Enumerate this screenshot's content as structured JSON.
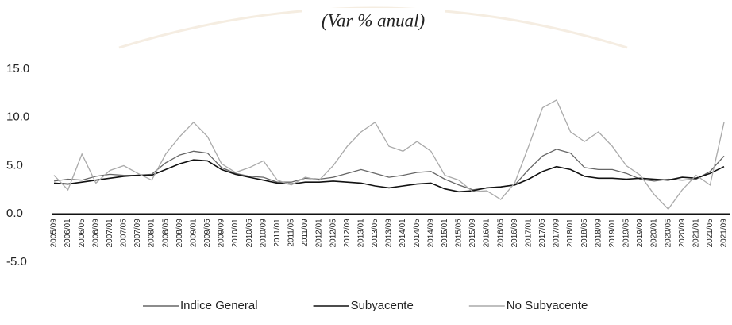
{
  "chart_data": {
    "type": "line",
    "title": "(Var % anual)",
    "categories": [
      "2005/09",
      "2006/01",
      "2006/05",
      "2006/09",
      "2007/01",
      "2007/05",
      "2007/09",
      "2008/01",
      "2008/05",
      "2008/09",
      "2009/01",
      "2009/05",
      "2009/09",
      "2010/01",
      "2010/05",
      "2010/09",
      "2011/01",
      "2011/05",
      "2011/09",
      "2012/01",
      "2012/05",
      "2012/09",
      "2013/01",
      "2013/05",
      "2013/09",
      "2014/01",
      "2014/05",
      "2014/09",
      "2015/01",
      "2015/05",
      "2015/09",
      "2016/01",
      "2016/05",
      "2016/09",
      "2017/01",
      "2017/05",
      "2017/09",
      "2018/01",
      "2018/05",
      "2018/09",
      "2019/01",
      "2019/05",
      "2019/09",
      "2020/01",
      "2020/05",
      "2020/09",
      "2021/01",
      "2021/05",
      "2021/09"
    ],
    "series": [
      {
        "name": "Indice General",
        "color": "#666666",
        "values": [
          3.4,
          3.6,
          3.5,
          3.9,
          4.1,
          4.0,
          4.0,
          4.1,
          5.3,
          6.1,
          6.5,
          6.3,
          4.8,
          4.2,
          3.9,
          3.8,
          3.3,
          3.3,
          3.7,
          3.6,
          3.8,
          4.2,
          4.6,
          4.2,
          3.8,
          4.0,
          4.3,
          4.4,
          3.6,
          3.0,
          2.5,
          2.7,
          2.8,
          3.0,
          4.6,
          6.0,
          6.7,
          6.3,
          4.8,
          4.6,
          4.6,
          4.2,
          3.6,
          3.4,
          3.6,
          3.5,
          3.6,
          4.4,
          6.0
        ]
      },
      {
        "name": "Subyacente",
        "color": "#111111",
        "values": [
          3.2,
          3.1,
          3.3,
          3.5,
          3.7,
          3.9,
          4.0,
          4.0,
          4.6,
          5.2,
          5.6,
          5.5,
          4.6,
          4.1,
          3.8,
          3.5,
          3.2,
          3.1,
          3.3,
          3.3,
          3.4,
          3.3,
          3.2,
          2.9,
          2.7,
          2.9,
          3.1,
          3.2,
          2.6,
          2.3,
          2.4,
          2.7,
          2.8,
          3.0,
          3.6,
          4.4,
          4.9,
          4.6,
          3.9,
          3.7,
          3.7,
          3.6,
          3.7,
          3.6,
          3.5,
          3.8,
          3.7,
          4.2,
          4.9
        ]
      },
      {
        "name": "No Subyacente",
        "color": "#aaaaaa",
        "values": [
          4.0,
          2.5,
          6.2,
          3.2,
          4.5,
          5.0,
          4.2,
          3.5,
          6.2,
          8.0,
          9.5,
          8.0,
          5.2,
          4.3,
          4.8,
          5.5,
          3.5,
          3.0,
          3.8,
          3.5,
          5.0,
          7.0,
          8.5,
          9.5,
          7.0,
          6.5,
          7.5,
          6.5,
          4.0,
          3.5,
          2.3,
          2.4,
          1.5,
          3.2,
          7.0,
          11.0,
          11.8,
          8.5,
          7.5,
          8.5,
          7.0,
          5.0,
          4.0,
          2.0,
          0.5,
          2.5,
          4.0,
          3.0,
          9.5
        ]
      }
    ],
    "ylim": [
      -5,
      15
    ],
    "yticks": [
      {
        "value": -5,
        "label": "-5.0"
      },
      {
        "value": 0,
        "label": "0.0"
      },
      {
        "value": 5,
        "label": "5.0"
      },
      {
        "value": 10,
        "label": "10.0"
      },
      {
        "value": 15,
        "label": "15.0"
      }
    ],
    "legend": "bottom"
  }
}
